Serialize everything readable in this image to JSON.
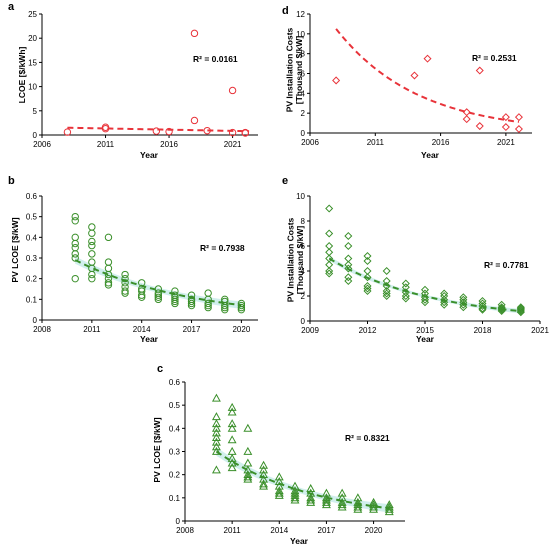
{
  "colors": {
    "red": "#e8333a",
    "green": "#3a8f2a",
    "band": "#c9ecea"
  },
  "chart_data": [
    {
      "id": "a",
      "panel_label": "a",
      "type": "scatter",
      "xlabel": "Year",
      "ylabel": "LCOE [$/kWh]",
      "xlim": [
        2006,
        2023
      ],
      "ylim": [
        0,
        25
      ],
      "xticks": [
        2006,
        2011,
        2016,
        2021
      ],
      "yticks": [
        0,
        5,
        10,
        15,
        20,
        25
      ],
      "xtick_labels": [
        "2006",
        "2011",
        "2016",
        "2021"
      ],
      "ytick_labels": [
        "0",
        "5",
        "10",
        "15",
        "20",
        "25"
      ],
      "marker": "circle",
      "color": "#e8333a",
      "r2_label": "R² = 0.0161",
      "points": [
        [
          2008,
          0.6
        ],
        [
          2011,
          1.3
        ],
        [
          2011,
          1.6
        ],
        [
          2015,
          0.8
        ],
        [
          2016,
          0.7
        ],
        [
          2018,
          21
        ],
        [
          2018,
          3
        ],
        [
          2019,
          0.9
        ],
        [
          2021,
          9.2
        ],
        [
          2021,
          0.5
        ],
        [
          2022,
          0.4
        ],
        [
          2022,
          0.5
        ]
      ],
      "trend": {
        "kind": "linear",
        "a": 1.5,
        "b": -0.05,
        "x0": 2008,
        "x1": 2022.3,
        "from": 2008
      }
    },
    {
      "id": "d",
      "panel_label": "d",
      "type": "scatter",
      "xlabel": "Year",
      "ylabel": "PV Installation Costs [Thousand $/kW]",
      "xlim": [
        2006,
        2023
      ],
      "ylim": [
        0,
        12
      ],
      "xticks": [
        2006,
        2011,
        2016,
        2021
      ],
      "yticks": [
        0,
        2,
        4,
        6,
        8,
        10,
        12
      ],
      "xtick_labels": [
        "2006",
        "2011",
        "2016",
        "2021"
      ],
      "ytick_labels": [
        "0",
        "2",
        "4",
        "6",
        "8",
        "10",
        "12"
      ],
      "marker": "diamond",
      "color": "#e8333a",
      "r2_label": "R² = 0.2531",
      "points": [
        [
          2008,
          5.3
        ],
        [
          2014,
          5.8
        ],
        [
          2015,
          7.5
        ],
        [
          2018,
          2.1
        ],
        [
          2018,
          1.4
        ],
        [
          2019,
          6.3
        ],
        [
          2019,
          0.7
        ],
        [
          2021,
          1.6
        ],
        [
          2021,
          0.6
        ],
        [
          2022,
          1.6
        ],
        [
          2022,
          0.4
        ]
      ],
      "trend": {
        "kind": "exp",
        "a": 10.5,
        "b": -0.16,
        "x0": 2008,
        "x1": 2022,
        "from": 2008
      }
    },
    {
      "id": "b",
      "panel_label": "b",
      "type": "scatter",
      "xlabel": "Year",
      "ylabel": "PV LCOE [$/kW]",
      "xlim": [
        2008,
        2021
      ],
      "ylim": [
        0,
        0.6
      ],
      "xticks": [
        2008,
        2011,
        2014,
        2017,
        2020
      ],
      "yticks": [
        0,
        0.1,
        0.2,
        0.3,
        0.4,
        0.5,
        0.6
      ],
      "xtick_labels": [
        "2008",
        "2011",
        "2014",
        "2017",
        "2020"
      ],
      "ytick_labels": [
        "0",
        "0.1",
        "0.2",
        "0.3",
        "0.4",
        "0.5",
        "0.6"
      ],
      "marker": "circle",
      "color": "#3a8f2a",
      "r2_label": "R² = 0.7938",
      "points": [
        [
          2010,
          0.5
        ],
        [
          2010,
          0.48
        ],
        [
          2010,
          0.4
        ],
        [
          2010,
          0.37
        ],
        [
          2010,
          0.35
        ],
        [
          2010,
          0.32
        ],
        [
          2010,
          0.3
        ],
        [
          2010,
          0.2
        ],
        [
          2011,
          0.45
        ],
        [
          2011,
          0.42
        ],
        [
          2011,
          0.38
        ],
        [
          2011,
          0.36
        ],
        [
          2011,
          0.32
        ],
        [
          2011,
          0.28
        ],
        [
          2011,
          0.25
        ],
        [
          2011,
          0.22
        ],
        [
          2011,
          0.2
        ],
        [
          2012,
          0.4
        ],
        [
          2012,
          0.28
        ],
        [
          2012,
          0.25
        ],
        [
          2012,
          0.22
        ],
        [
          2012,
          0.2
        ],
        [
          2012,
          0.18
        ],
        [
          2012,
          0.17
        ],
        [
          2013,
          0.22
        ],
        [
          2013,
          0.2
        ],
        [
          2013,
          0.18
        ],
        [
          2013,
          0.16
        ],
        [
          2013,
          0.14
        ],
        [
          2013,
          0.13
        ],
        [
          2014,
          0.18
        ],
        [
          2014,
          0.15
        ],
        [
          2014,
          0.14
        ],
        [
          2014,
          0.12
        ],
        [
          2014,
          0.11
        ],
        [
          2015,
          0.15
        ],
        [
          2015,
          0.13
        ],
        [
          2015,
          0.12
        ],
        [
          2015,
          0.11
        ],
        [
          2015,
          0.1
        ],
        [
          2016,
          0.14
        ],
        [
          2016,
          0.12
        ],
        [
          2016,
          0.11
        ],
        [
          2016,
          0.1
        ],
        [
          2016,
          0.09
        ],
        [
          2016,
          0.08
        ],
        [
          2017,
          0.12
        ],
        [
          2017,
          0.1
        ],
        [
          2017,
          0.09
        ],
        [
          2017,
          0.08
        ],
        [
          2017,
          0.07
        ],
        [
          2018,
          0.13
        ],
        [
          2018,
          0.1
        ],
        [
          2018,
          0.08
        ],
        [
          2018,
          0.07
        ],
        [
          2018,
          0.06
        ],
        [
          2019,
          0.1
        ],
        [
          2019,
          0.09
        ],
        [
          2019,
          0.07
        ],
        [
          2019,
          0.06
        ],
        [
          2019,
          0.05
        ],
        [
          2020,
          0.08
        ],
        [
          2020,
          0.07
        ],
        [
          2020,
          0.06
        ],
        [
          2020,
          0.05
        ]
      ],
      "trend": {
        "kind": "exp",
        "a": 0.29,
        "b": -0.14,
        "x0": 2010,
        "x1": 2020,
        "from": 2010
      },
      "band": 0.02
    },
    {
      "id": "e",
      "panel_label": "e",
      "type": "scatter",
      "xlabel": "Year",
      "ylabel": "PV Installation Costs [Thousand $/kW]",
      "xlim": [
        2009,
        2021
      ],
      "ylim": [
        0,
        10
      ],
      "xticks": [
        2009,
        2012,
        2015,
        2018,
        2021
      ],
      "yticks": [
        0,
        2,
        4,
        6,
        8,
        10
      ],
      "xtick_labels": [
        "2009",
        "2012",
        "2015",
        "2018",
        "2021"
      ],
      "ytick_labels": [
        "0",
        "2",
        "4",
        "6",
        "8",
        "10"
      ],
      "marker": "diamond",
      "color": "#3a8f2a",
      "r2_label": "R² = 0.7781",
      "points": [
        [
          2010,
          9
        ],
        [
          2010,
          7
        ],
        [
          2010,
          6
        ],
        [
          2010,
          5.5
        ],
        [
          2010,
          5
        ],
        [
          2010,
          4.5
        ],
        [
          2010,
          4
        ],
        [
          2010,
          3.8
        ],
        [
          2011,
          6.8
        ],
        [
          2011,
          6
        ],
        [
          2011,
          5
        ],
        [
          2011,
          4.5
        ],
        [
          2011,
          4.2
        ],
        [
          2011,
          3.5
        ],
        [
          2011,
          3.2
        ],
        [
          2012,
          5.2
        ],
        [
          2012,
          4.8
        ],
        [
          2012,
          4
        ],
        [
          2012,
          3.5
        ],
        [
          2012,
          2.8
        ],
        [
          2012,
          2.6
        ],
        [
          2012,
          2.4
        ],
        [
          2013,
          4
        ],
        [
          2013,
          3.2
        ],
        [
          2013,
          2.8
        ],
        [
          2013,
          2.4
        ],
        [
          2013,
          2.2
        ],
        [
          2013,
          2
        ],
        [
          2014,
          3
        ],
        [
          2014,
          2.7
        ],
        [
          2014,
          2.3
        ],
        [
          2014,
          2
        ],
        [
          2014,
          1.8
        ],
        [
          2015,
          2.5
        ],
        [
          2015,
          2.2
        ],
        [
          2015,
          1.9
        ],
        [
          2015,
          1.7
        ],
        [
          2015,
          1.5
        ],
        [
          2016,
          2.2
        ],
        [
          2016,
          2
        ],
        [
          2016,
          1.7
        ],
        [
          2016,
          1.5
        ],
        [
          2016,
          1.3
        ],
        [
          2017,
          1.9
        ],
        [
          2017,
          1.7
        ],
        [
          2017,
          1.5
        ],
        [
          2017,
          1.3
        ],
        [
          2017,
          1.1
        ],
        [
          2018,
          1.6
        ],
        [
          2018,
          1.4
        ],
        [
          2018,
          1.2
        ],
        [
          2018,
          1
        ],
        [
          2018,
          0.9
        ],
        [
          2019,
          1.3
        ],
        [
          2019,
          1.1
        ],
        [
          2019,
          1
        ],
        [
          2019,
          0.9
        ],
        [
          2019,
          0.8
        ],
        [
          2020,
          1.1
        ],
        [
          2020,
          1
        ],
        [
          2020,
          0.9
        ],
        [
          2020,
          0.8
        ],
        [
          2020,
          0.7
        ]
      ],
      "trend": {
        "kind": "exp",
        "a": 5.0,
        "b": -0.185,
        "x0": 2010,
        "x1": 2020,
        "from": 2010
      },
      "band": 0.2
    },
    {
      "id": "c",
      "panel_label": "c",
      "type": "scatter",
      "xlabel": "Year",
      "ylabel": "PV LCOE [$/kW]",
      "xlim": [
        2008,
        2022
      ],
      "ylim": [
        0,
        0.6
      ],
      "xticks": [
        2008,
        2011,
        2014,
        2017,
        2020
      ],
      "yticks": [
        0,
        0.1,
        0.2,
        0.3,
        0.4,
        0.5,
        0.6
      ],
      "xtick_labels": [
        "2008",
        "2011",
        "2014",
        "2017",
        "2020"
      ],
      "ytick_labels": [
        "0",
        "0.1",
        "0.2",
        "0.3",
        "0.4",
        "0.5",
        "0.6"
      ],
      "marker": "triangle",
      "color": "#3a8f2a",
      "r2_label": "R² = 0.8321",
      "points": [
        [
          2010,
          0.53
        ],
        [
          2010,
          0.45
        ],
        [
          2010,
          0.42
        ],
        [
          2010,
          0.4
        ],
        [
          2010,
          0.38
        ],
        [
          2010,
          0.36
        ],
        [
          2010,
          0.34
        ],
        [
          2010,
          0.32
        ],
        [
          2010,
          0.3
        ],
        [
          2010,
          0.22
        ],
        [
          2011,
          0.49
        ],
        [
          2011,
          0.47
        ],
        [
          2011,
          0.42
        ],
        [
          2011,
          0.4
        ],
        [
          2011,
          0.35
        ],
        [
          2011,
          0.3
        ],
        [
          2011,
          0.27
        ],
        [
          2011,
          0.25
        ],
        [
          2011,
          0.23
        ],
        [
          2012,
          0.4
        ],
        [
          2012,
          0.3
        ],
        [
          2012,
          0.25
        ],
        [
          2012,
          0.22
        ],
        [
          2012,
          0.2
        ],
        [
          2012,
          0.19
        ],
        [
          2012,
          0.18
        ],
        [
          2013,
          0.24
        ],
        [
          2013,
          0.22
        ],
        [
          2013,
          0.2
        ],
        [
          2013,
          0.18
        ],
        [
          2013,
          0.16
        ],
        [
          2013,
          0.15
        ],
        [
          2014,
          0.19
        ],
        [
          2014,
          0.17
        ],
        [
          2014,
          0.15
        ],
        [
          2014,
          0.13
        ],
        [
          2014,
          0.12
        ],
        [
          2014,
          0.11
        ],
        [
          2015,
          0.15
        ],
        [
          2015,
          0.13
        ],
        [
          2015,
          0.12
        ],
        [
          2015,
          0.11
        ],
        [
          2015,
          0.1
        ],
        [
          2015,
          0.09
        ],
        [
          2016,
          0.14
        ],
        [
          2016,
          0.12
        ],
        [
          2016,
          0.1
        ],
        [
          2016,
          0.09
        ],
        [
          2016,
          0.08
        ],
        [
          2017,
          0.12
        ],
        [
          2017,
          0.1
        ],
        [
          2017,
          0.09
        ],
        [
          2017,
          0.08
        ],
        [
          2017,
          0.07
        ],
        [
          2018,
          0.12
        ],
        [
          2018,
          0.1
        ],
        [
          2018,
          0.08
        ],
        [
          2018,
          0.07
        ],
        [
          2018,
          0.06
        ],
        [
          2019,
          0.1
        ],
        [
          2019,
          0.08
        ],
        [
          2019,
          0.07
        ],
        [
          2019,
          0.06
        ],
        [
          2019,
          0.05
        ],
        [
          2020,
          0.08
        ],
        [
          2020,
          0.07
        ],
        [
          2020,
          0.06
        ],
        [
          2020,
          0.05
        ],
        [
          2021,
          0.07
        ],
        [
          2021,
          0.06
        ],
        [
          2021,
          0.05
        ],
        [
          2021,
          0.04
        ]
      ],
      "trend": {
        "kind": "exp",
        "a": 0.3,
        "b": -0.155,
        "x0": 2010,
        "x1": 2021,
        "from": 2010
      },
      "band": 0.02
    }
  ]
}
